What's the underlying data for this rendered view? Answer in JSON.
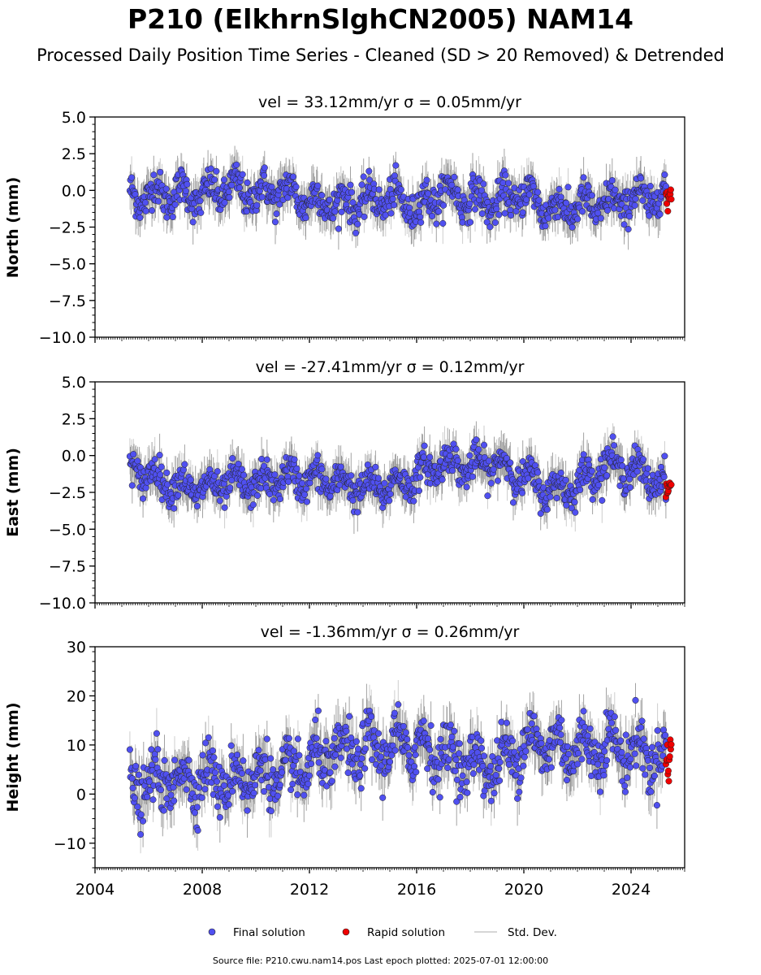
{
  "figure": {
    "title": "P210 (ElkhrnSlghCN2005) NAM14",
    "subtitle": "Processed Daily Position Time Series - Cleaned (SD > 20 Removed) & Detrended",
    "footer": "Source file: P210.cwu.nam14.pos  Last epoch plotted: 2025-07-01 12:00:00"
  },
  "legend": {
    "final": "Final solution",
    "rapid": "Rapid solution",
    "std": "Std. Dev."
  },
  "colors": {
    "final_fill": "#5050f0",
    "rapid_fill": "#ee0000",
    "std_line": "#c8c8c8",
    "std_dense": "#555555"
  },
  "chart_data": [
    {
      "type": "scatter",
      "id": "north",
      "title": "vel = 33.12mm/yr   σ = 0.05mm/yr",
      "ylabel": "North (mm)",
      "ylim": [
        -10,
        5
      ],
      "yticks": [
        -10.0,
        -7.5,
        -5.0,
        -2.5,
        0.0,
        2.5,
        5.0
      ],
      "ytick_labels": [
        "−10.0",
        "−7.5",
        "−5.0",
        "−2.5",
        "0.0",
        "2.5",
        "5.0"
      ],
      "xlim": [
        2004.0,
        2026.0
      ],
      "start": 2005.3,
      "end": 2025.3,
      "rapid_start": 2025.3,
      "rapid_end": 2025.5,
      "noise": 1.0,
      "std": 1.1,
      "series": [
        {
          "name": "Final solution",
          "x": [
            2005.3,
            2006.0,
            2007.0,
            2008.0,
            2009.0,
            2010.0,
            2011.0,
            2012.0,
            2013.0,
            2014.0,
            2015.0,
            2016.0,
            2017.0,
            2018.0,
            2019.0,
            2020.0,
            2021.0,
            2022.0,
            2023.0,
            2024.0,
            2025.3
          ],
          "y": [
            -0.5,
            -0.3,
            -0.2,
            -0.4,
            0.2,
            -0.3,
            0.0,
            -0.7,
            -0.9,
            -0.8,
            -0.5,
            -1.2,
            -0.1,
            -0.6,
            -0.9,
            -0.2,
            -1.3,
            -1.1,
            -1.0,
            -0.6,
            -0.4
          ]
        },
        {
          "name": "Rapid solution",
          "x": [
            2025.3,
            2025.5
          ],
          "y": [
            -0.4,
            -0.6
          ]
        }
      ]
    },
    {
      "type": "scatter",
      "id": "east",
      "title": "vel = -27.41mm/yr   σ = 0.12mm/yr",
      "ylabel": "East (mm)",
      "ylim": [
        -10,
        5
      ],
      "yticks": [
        -10.0,
        -7.5,
        -5.0,
        -2.5,
        0.0,
        2.5,
        5.0
      ],
      "ytick_labels": [
        "−10.0",
        "−7.5",
        "−5.0",
        "−2.5",
        "0.0",
        "2.5",
        "5.0"
      ],
      "xlim": [
        2004.0,
        2026.0
      ],
      "start": 2005.3,
      "end": 2025.3,
      "rapid_start": 2025.3,
      "rapid_end": 2025.5,
      "noise": 0.9,
      "std": 1.1,
      "series": [
        {
          "name": "Final solution",
          "x": [
            2005.3,
            2006.0,
            2007.0,
            2008.0,
            2009.0,
            2010.0,
            2011.0,
            2012.0,
            2013.0,
            2014.0,
            2015.0,
            2016.0,
            2017.0,
            2018.0,
            2019.0,
            2020.0,
            2021.0,
            2022.0,
            2023.0,
            2024.0,
            2025.3
          ],
          "y": [
            -0.8,
            -1.3,
            -2.0,
            -2.3,
            -1.9,
            -2.0,
            -1.5,
            -1.6,
            -1.8,
            -2.2,
            -2.1,
            -1.4,
            -0.4,
            -0.8,
            -0.5,
            -1.5,
            -2.4,
            -2.0,
            -0.6,
            -0.9,
            -2.0
          ]
        },
        {
          "name": "Rapid solution",
          "x": [
            2025.3,
            2025.5
          ],
          "y": [
            -1.8,
            -2.2
          ]
        }
      ]
    },
    {
      "type": "scatter",
      "id": "height",
      "title": "vel = -1.36mm/yr   σ = 0.26mm/yr",
      "ylabel": "Height (mm)",
      "ylim": [
        -15,
        30
      ],
      "yticks": [
        -10,
        0,
        10,
        20,
        30
      ],
      "ytick_labels": [
        "−10",
        "0",
        "10",
        "20",
        "30"
      ],
      "xlim": [
        2004.0,
        2026.0
      ],
      "start": 2005.3,
      "end": 2025.3,
      "rapid_start": 2025.3,
      "rapid_end": 2025.5,
      "noise": 4.5,
      "std": 4.0,
      "xticks": [
        2004,
        2008,
        2012,
        2016,
        2020,
        2024
      ],
      "xtick_labels": [
        "2004",
        "2008",
        "2012",
        "2016",
        "2020",
        "2024"
      ],
      "series": [
        {
          "name": "Final solution",
          "x": [
            2005.3,
            2006.0,
            2007.0,
            2008.0,
            2009.0,
            2010.0,
            2011.0,
            2012.0,
            2013.0,
            2014.0,
            2015.0,
            2016.0,
            2017.0,
            2018.0,
            2019.0,
            2020.0,
            2021.0,
            2022.0,
            2023.0,
            2024.0,
            2025.3
          ],
          "y": [
            0.5,
            2.0,
            3.0,
            3.5,
            2.5,
            4.0,
            3.5,
            6.0,
            8.0,
            9.0,
            9.5,
            10.0,
            8.0,
            6.5,
            5.5,
            10.5,
            10.0,
            9.0,
            10.0,
            9.0,
            7.0
          ]
        },
        {
          "name": "Rapid solution",
          "x": [
            2025.3,
            2025.5
          ],
          "y": [
            6.0,
            8.0
          ]
        }
      ]
    }
  ]
}
